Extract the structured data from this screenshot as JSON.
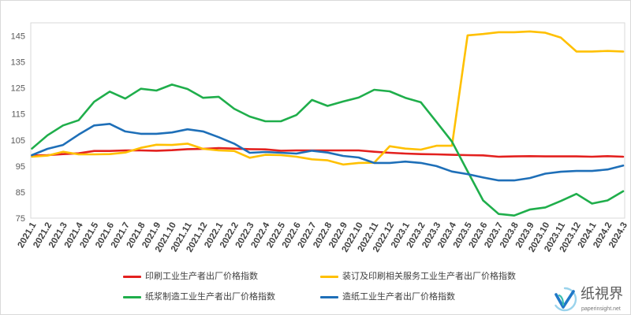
{
  "chart_data": {
    "type": "line",
    "grid": false,
    "legend_position": "bottom",
    "ylim": [
      75,
      150
    ],
    "yticks": [
      75,
      85,
      95,
      105,
      115,
      125,
      135,
      145
    ],
    "categories": [
      "2021.1",
      "2021.2",
      "2021.3",
      "2021.4",
      "2021.5",
      "2021.6",
      "2021.7",
      "2021.8",
      "2021.9",
      "2021.10",
      "2021.11",
      "2021.12",
      "2022.1",
      "2022.2",
      "2022.3",
      "2022.4",
      "2022.5",
      "2022.6",
      "2022.7",
      "2022.8",
      "2022.9",
      "2022.10",
      "2022.11",
      "2022.12",
      "2023.1",
      "2023.2",
      "2023.3",
      "2023.4",
      "2023.5",
      "2023.6",
      "2023.7",
      "2023.8",
      "2023.9",
      "2023.10",
      "2023.11",
      "2023.12",
      "2024.1",
      "2024.2",
      "2024.3"
    ],
    "series": [
      {
        "name": "印刷工业生产者出厂价格指数",
        "color": "#e3211f",
        "values": [
          99.0,
          99.2,
          99.6,
          99.9,
          100.8,
          100.8,
          101.0,
          101.0,
          100.9,
          101.1,
          101.5,
          101.6,
          101.9,
          101.7,
          101.5,
          101.4,
          100.9,
          101.0,
          101.0,
          101.0,
          101.0,
          101.0,
          100.5,
          100.1,
          99.8,
          99.6,
          99.5,
          99.3,
          99.2,
          99.1,
          98.6,
          98.7,
          98.8,
          98.7,
          98.7,
          98.7,
          98.6,
          98.8,
          98.6
        ]
      },
      {
        "name": "装订及印刷相关服务工业生产者出厂价格指数",
        "color": "#ffc000",
        "values": [
          98.6,
          99.0,
          100.5,
          99.5,
          99.5,
          99.6,
          100.2,
          102.0,
          103.2,
          103.1,
          103.6,
          101.6,
          101.0,
          100.8,
          98.2,
          99.3,
          99.2,
          98.6,
          97.6,
          97.2,
          95.6,
          96.2,
          96.3,
          102.6,
          101.7,
          101.3,
          102.8,
          102.8,
          145.2,
          145.7,
          146.4,
          146.4,
          146.7,
          146.2,
          144.3,
          139.0,
          139.0,
          139.2,
          139.0
        ]
      },
      {
        "name": "纸浆制造工业生产者出厂价格指数",
        "color": "#1fae4b",
        "values": [
          101.7,
          106.8,
          110.6,
          112.6,
          119.7,
          123.6,
          120.9,
          124.7,
          124.0,
          126.3,
          124.6,
          121.2,
          121.6,
          117.0,
          114.0,
          112.2,
          112.2,
          114.6,
          120.4,
          118.1,
          119.8,
          121.3,
          124.3,
          123.7,
          121.2,
          119.5,
          112.0,
          104.4,
          93.0,
          81.8,
          76.6,
          76.0,
          78.3,
          79.1,
          81.6,
          84.3,
          80.6,
          81.8,
          85.3
        ]
      },
      {
        "name": "造纸工业生产者出厂价格指数",
        "color": "#1e6fb8",
        "values": [
          99.2,
          101.6,
          103.1,
          107.1,
          110.6,
          111.2,
          108.3,
          107.4,
          107.4,
          107.9,
          109.1,
          108.3,
          106.1,
          103.6,
          100.1,
          100.4,
          100.1,
          99.8,
          100.9,
          100.2,
          98.9,
          98.3,
          96.2,
          96.2,
          96.7,
          96.2,
          95.0,
          92.9,
          91.9,
          90.6,
          89.5,
          89.5,
          90.4,
          92.1,
          92.8,
          93.1,
          93.1,
          93.7,
          95.2
        ]
      }
    ]
  },
  "logo": {
    "name": "纸視界",
    "site": "paperinsight.net"
  }
}
